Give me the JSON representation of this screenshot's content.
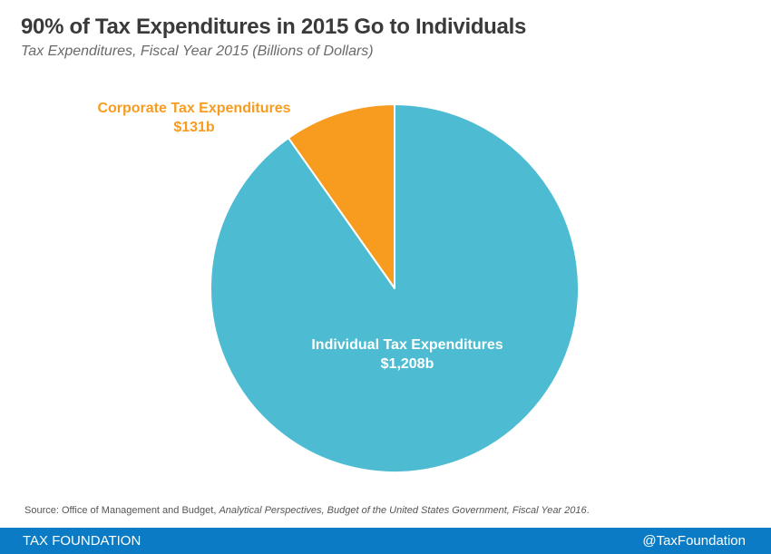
{
  "chart_data": {
    "type": "pie",
    "title": "90% of Tax Expenditures in 2015 Go to Individuals",
    "subtitle": "Tax Expenditures, Fiscal Year 2015 (Billions of Dollars)",
    "start": "top",
    "direction": "counterclockwise",
    "slices": [
      {
        "name": "Corporate Tax Expenditures",
        "value": 131,
        "label_value": "$131b",
        "color": "#f89c20",
        "label_color": "#f89c20",
        "label_position": "outside"
      },
      {
        "name": "Individual Tax Expenditures",
        "value": 1208,
        "label_value": "$1,208b",
        "color": "#4dbcd2",
        "label_color": "#ffffff",
        "label_position": "inside"
      }
    ],
    "legend": "none"
  },
  "source": {
    "prefix": "Source: Office of Management and Budget, ",
    "italic": "Analytical Perspectives, Budget of the United States Government, Fiscal Year 2016",
    "suffix": "."
  },
  "footer": {
    "brand": "TAX FOUNDATION",
    "handle": "@TaxFoundation",
    "color": "#0a7bc4"
  }
}
